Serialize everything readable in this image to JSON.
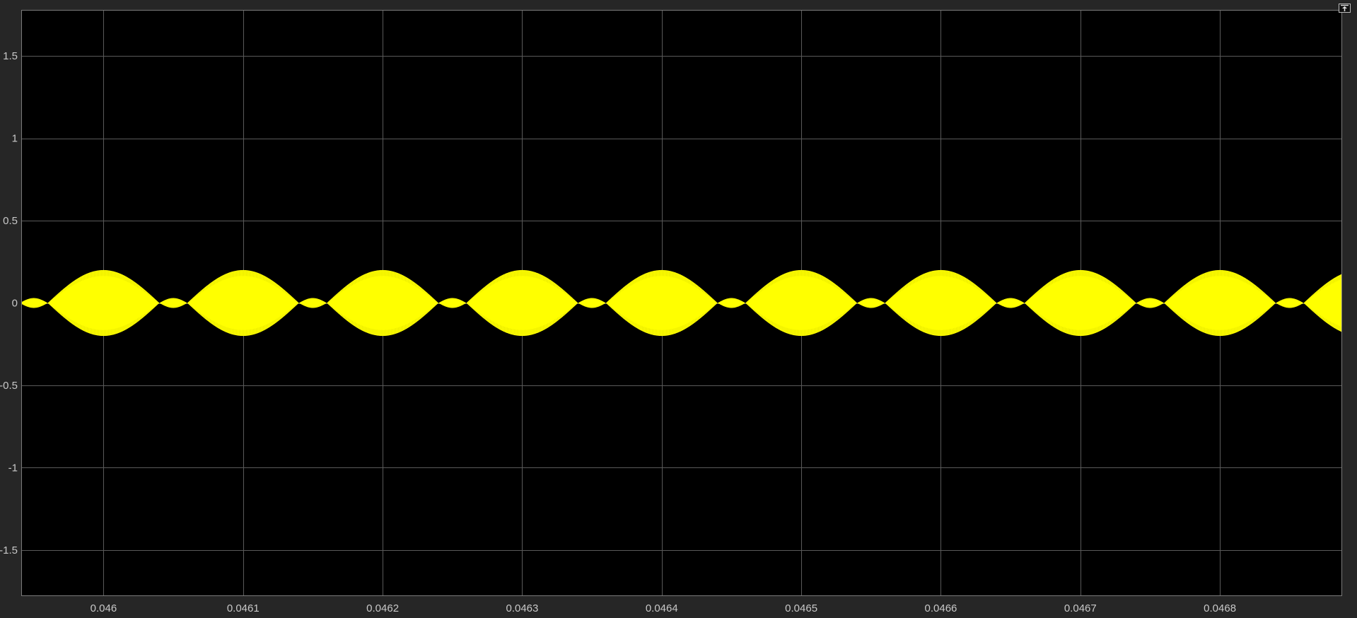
{
  "window": {
    "undock_icon": "undock-arrow-icon"
  },
  "colors": {
    "background": "#262626",
    "axes": "#000000",
    "grid": "#5a5a5a",
    "signal": "#ffff00",
    "ticks": "#c8c8c8"
  },
  "chart_data": {
    "type": "line",
    "title": "",
    "xlabel": "",
    "ylabel": "",
    "xlim": [
      0.045941,
      0.0468876
    ],
    "ylim": [
      -1.78,
      1.78
    ],
    "grid": true,
    "legend": "none",
    "xticks": [
      0.046,
      0.0461,
      0.0462,
      0.0463,
      0.0464,
      0.0465,
      0.0466,
      0.0467,
      0.0468
    ],
    "xtick_labels": [
      "0.046",
      "0.0461",
      "0.0462",
      "0.0463",
      "0.0464",
      "0.0465",
      "0.0466",
      "0.0467",
      "0.0468"
    ],
    "yticks": [
      1.5,
      1,
      0.5,
      0,
      -0.5,
      -1,
      -1.5
    ],
    "ytick_labels": [
      "1.5",
      "1",
      "0.5",
      "0",
      "-0.5",
      "-1",
      "-1.5"
    ],
    "series": [
      {
        "description_of_shape": "amplitude-modulated high-frequency carrier",
        "envelope_period": 0.0001,
        "major_lobe_peak_amplitude": 0.2,
        "minor_lobe_peak_amplitude": 0.03,
        "major_lobe_centers": [
          0.046,
          0.0461,
          0.0462,
          0.0463,
          0.0464,
          0.0465,
          0.0466,
          0.0467,
          0.0468
        ],
        "major_lobe_center_offset": 4e-05,
        "envelope_zero_crossings_offsets": [
          0.0,
          8e-05
        ],
        "carrier_cycles_per_envelope_period": 300,
        "color": "#ffff00"
      }
    ]
  }
}
